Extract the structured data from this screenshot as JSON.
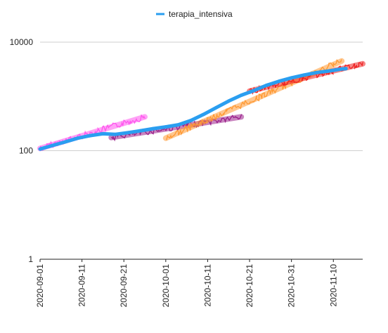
{
  "chart_data": {
    "type": "line",
    "legend": {
      "position": "top-center",
      "entries": [
        {
          "label": "terapia_intensiva",
          "color": "#2a9ef0"
        }
      ]
    },
    "y_axis": {
      "scale": "log",
      "range": [
        1,
        10000
      ],
      "ticks": [
        {
          "value": 1,
          "label": "1"
        },
        {
          "value": 100,
          "label": "100"
        },
        {
          "value": 10000,
          "label": "10000"
        }
      ],
      "grid": true
    },
    "x_axis": {
      "type": "date",
      "range": [
        "2020-09-01",
        "2020-11-17"
      ],
      "ticks": [
        {
          "value": "2020-09-01",
          "label": "2020-09-01"
        },
        {
          "value": "2020-09-11",
          "label": "2020-09-11"
        },
        {
          "value": "2020-09-21",
          "label": "2020-09-21"
        },
        {
          "value": "2020-10-01",
          "label": "2020-10-01"
        },
        {
          "value": "2020-10-11",
          "label": "2020-10-11"
        },
        {
          "value": "2020-10-21",
          "label": "2020-10-21"
        },
        {
          "value": "2020-10-31",
          "label": "2020-10-31"
        },
        {
          "value": "2020-11-10",
          "label": "2020-11-10"
        }
      ],
      "grid": false
    },
    "series": [
      {
        "name": "terapia_intensiva",
        "color": "#2a9ef0",
        "x": [
          "2020-09-01",
          "2020-09-04",
          "2020-09-07",
          "2020-09-10",
          "2020-09-13",
          "2020-09-16",
          "2020-09-19",
          "2020-09-22",
          "2020-09-25",
          "2020-09-28",
          "2020-10-01",
          "2020-10-04",
          "2020-10-07",
          "2020-10-10",
          "2020-10-13",
          "2020-10-16",
          "2020-10-19",
          "2020-10-22",
          "2020-10-25",
          "2020-10-28",
          "2020-10-31",
          "2020-11-03",
          "2020-11-06",
          "2020-11-09",
          "2020-11-12",
          "2020-11-13"
        ],
        "y": [
          107,
          125,
          145,
          170,
          190,
          205,
          200,
          215,
          233,
          255,
          275,
          300,
          360,
          465,
          620,
          820,
          1050,
          1280,
          1600,
          1900,
          2200,
          2480,
          2750,
          2950,
          3200,
          3250
        ]
      }
    ],
    "overlays": [
      {
        "color": "#ff55ee",
        "x": [
          "2020-09-01",
          "2020-09-26"
        ],
        "y": [
          110,
          420
        ]
      },
      {
        "color": "#9a1f8a",
        "x": [
          "2020-09-18",
          "2020-10-19"
        ],
        "y": [
          175,
          420
        ]
      },
      {
        "color": "#ff9933",
        "x": [
          "2020-10-01",
          "2020-11-12"
        ],
        "y": [
          170,
          4500
        ]
      },
      {
        "color": "#ee2222",
        "x": [
          "2020-10-21",
          "2020-11-17"
        ],
        "y": [
          1250,
          4000
        ]
      }
    ]
  }
}
